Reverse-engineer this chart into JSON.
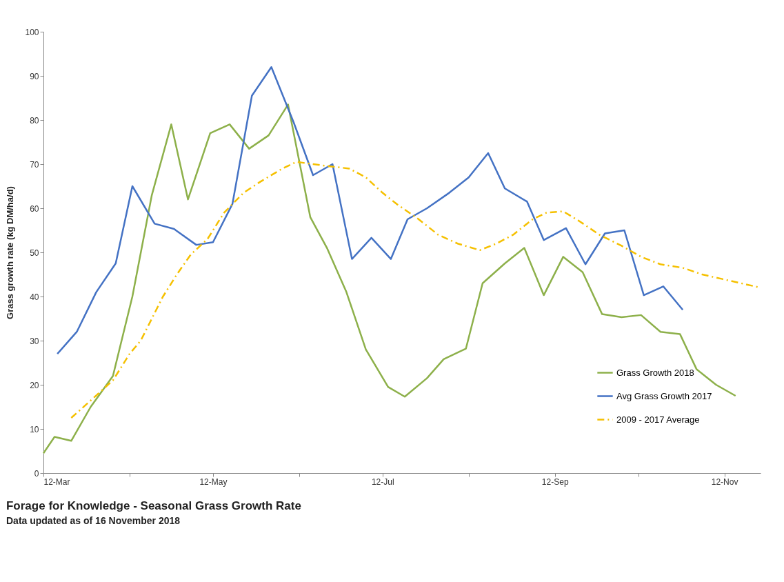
{
  "chart_data": {
    "type": "line",
    "title": "Forage for Knowledge -  Seasonal Grass Growth Rate",
    "subtitle": "Data updated as of 16 November 2018",
    "ylabel": "Grass growth rate (kg DM/ha/d)",
    "xlim": [
      "--03-12",
      "--11-25"
    ],
    "xticks": [
      {
        "value": "--03-12",
        "label": "12-Mar"
      },
      {
        "value": "--04-12",
        "label": null
      },
      {
        "value": "--05-12",
        "label": "12-May"
      },
      {
        "value": "--06-12",
        "label": null
      },
      {
        "value": "--07-12",
        "label": "12-Jul"
      },
      {
        "value": "--08-12",
        "label": null
      },
      {
        "value": "--09-12",
        "label": "12-Sep"
      },
      {
        "value": "--10-12",
        "label": null
      },
      {
        "value": "--11-12",
        "label": "12-Nov"
      }
    ],
    "ylim": [
      0,
      100
    ],
    "yticks": [
      0,
      10,
      20,
      30,
      40,
      50,
      60,
      70,
      80,
      90,
      100
    ],
    "grid": false,
    "legend": "bottom right",
    "marker": "none",
    "series": [
      {
        "name": "Grass Growth 2018",
        "color": "#8db04a",
        "line_style": "solid",
        "x": [
          "--03-12",
          "--03-16",
          "--03-22",
          "--03-29",
          "--04-06",
          "--04-13",
          "--04-20",
          "--04-27",
          "--05-03",
          "--05-11",
          "--05-18",
          "--05-25",
          "--06-01",
          "--06-08",
          "--06-16",
          "--06-22",
          "--06-29",
          "--07-06",
          "--07-14",
          "--07-20",
          "--07-28",
          "--08-03",
          "--08-11",
          "--08-17",
          "--08-25",
          "--09-01",
          "--09-08",
          "--09-15",
          "--09-22",
          "--09-29",
          "--10-06",
          "--10-13",
          "--10-20",
          "--10-27",
          "--11-02",
          "--11-09",
          "--11-16"
        ],
        "values": [
          4.5,
          8.2,
          7.3,
          15,
          22,
          40,
          63,
          79,
          62,
          77,
          79,
          73.5,
          76.5,
          83.5,
          58,
          51,
          41,
          28,
          19.5,
          17.3,
          21.5,
          25.8,
          28.2,
          43,
          47.5,
          51,
          40.3,
          49,
          45.5,
          36,
          35.3,
          35.8,
          32,
          31.5,
          23.5,
          20,
          17.5
        ]
      },
      {
        "name": "Avg Grass Growth 2017",
        "color": "#4472c4",
        "line_style": "solid",
        "x": [
          "--03-17",
          "--03-24",
          "--03-31",
          "--04-07",
          "--04-13",
          "--04-21",
          "--04-28",
          "--05-06",
          "--05-12",
          "--05-19",
          "--05-26",
          "--06-02",
          "--06-10",
          "--06-17",
          "--06-24",
          "--07-01",
          "--07-08",
          "--07-15",
          "--07-21",
          "--07-28",
          "--08-05",
          "--08-12",
          "--08-19",
          "--08-25",
          "--09-02",
          "--09-08",
          "--09-16",
          "--09-23",
          "--09-30",
          "--10-07",
          "--10-14",
          "--10-21",
          "--10-28"
        ],
        "values": [
          27,
          32,
          41,
          47.5,
          65,
          56.5,
          55.3,
          51.7,
          52.3,
          61,
          85.5,
          92,
          79.5,
          67.5,
          70,
          48.5,
          53.3,
          48.5,
          57.5,
          60,
          63.5,
          67,
          72.5,
          64.5,
          61.5,
          52.8,
          55.5,
          47.3,
          54.3,
          55,
          40.3,
          42.3,
          37
        ]
      },
      {
        "name": "2009 - 2017 Average",
        "color": "#f5c000",
        "line_style": "dashed",
        "x": [
          "--03-22",
          "--03-30",
          "--04-06",
          "--04-12",
          "--04-16",
          "--04-20",
          "--04-24",
          "--04-29",
          "--05-04",
          "--05-10",
          "--05-16",
          "--05-23",
          "--05-29",
          "--06-06",
          "--06-11",
          "--06-17",
          "--06-23",
          "--06-30",
          "--07-06",
          "--07-12",
          "--07-17",
          "--07-25",
          "--08-01",
          "--08-08",
          "--08-16",
          "--08-22",
          "--08-28",
          "--09-04",
          "--09-09",
          "--09-15",
          "--09-21",
          "--09-28",
          "--10-06",
          "--10-13",
          "--10-20",
          "--10-28",
          "--11-04",
          "--11-11",
          "--11-25"
        ],
        "values": [
          12.5,
          17,
          21,
          27,
          30,
          35,
          40,
          45,
          49.5,
          53,
          59,
          63.5,
          66,
          69,
          70.5,
          70,
          69.5,
          69,
          67,
          63.5,
          61,
          57.5,
          54,
          52,
          50.5,
          52,
          54,
          57.5,
          59,
          59.3,
          57,
          54,
          51.5,
          49,
          47.3,
          46.5,
          45,
          44,
          42
        ]
      }
    ]
  }
}
